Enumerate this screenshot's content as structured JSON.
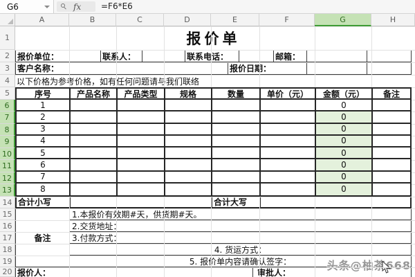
{
  "formula_bar": {
    "cell_ref": "G6",
    "fx_label": "fx",
    "formula": "=F6*E6"
  },
  "sheet": {
    "columns": [
      "A",
      "B",
      "C",
      "D",
      "E",
      "F",
      "G",
      "H"
    ],
    "row_numbers": [
      1,
      2,
      3,
      4,
      5,
      6,
      7,
      8,
      9,
      10,
      11,
      12,
      13,
      14,
      15,
      16,
      17,
      18,
      19,
      20
    ],
    "selected_cell": "G6",
    "selected_range": "G6:G13"
  },
  "title": "报价单",
  "info": {
    "unit_label": "报价单位：",
    "contact_label": "联系人：",
    "phone_label": "联系电话：",
    "email_label": "邮箱：",
    "customer_label": "客户名称：",
    "date_label": "报价日期：",
    "notice": "以下价格为参考价格，如有任何问题请与我们联络"
  },
  "table": {
    "headers": [
      "序号",
      "产品名称",
      "产品类型",
      "规格",
      "数量",
      "单价（元）",
      "金额（元）",
      "备注"
    ],
    "rows": [
      {
        "no": "1",
        "amount": "0"
      },
      {
        "no": "2",
        "amount": "0"
      },
      {
        "no": "3",
        "amount": "0"
      },
      {
        "no": "4",
        "amount": "0"
      },
      {
        "no": "5",
        "amount": "0"
      },
      {
        "no": "6",
        "amount": "0"
      },
      {
        "no": "7",
        "amount": "0"
      },
      {
        "no": "8",
        "amount": "0"
      }
    ]
  },
  "totals": {
    "lower_label": "合计小写",
    "upper_label": "合计大写"
  },
  "remarks": {
    "label": "备注",
    "lines": [
      "1.本报价有效期#天，供货期#天。",
      "2.交货地址：",
      "3.付款方式：",
      "4. 货运方式：",
      "5. 报价单内容请确认签字："
    ]
  },
  "footer": {
    "quoter_label": "报价人：",
    "approver_label": "审批人："
  },
  "watermark": {
    "text": "头条@柚茶668"
  },
  "colors": {
    "selection_green": "#3f9c35",
    "selection_fill": "#e4f1dc",
    "selected_header_bg": "#c5e2b5",
    "table_border": "#262626",
    "watermark_gray": "#979797"
  }
}
